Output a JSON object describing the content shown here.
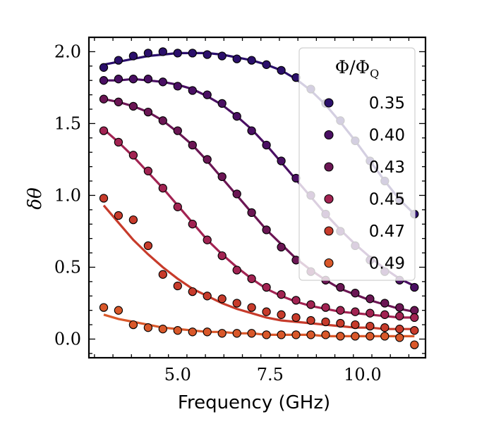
{
  "chart_data": {
    "type": "scatter",
    "xlabel": "Frequency (GHz)",
    "ylabel": "δθ",
    "xlim": [
      2.6,
      11.7
    ],
    "ylim": [
      -0.13,
      2.1
    ],
    "xticks": [
      5.0,
      7.5,
      10.0
    ],
    "xtick_labels": [
      "5.0",
      "7.5",
      "10.0"
    ],
    "yticks": [
      0.0,
      0.5,
      1.0,
      1.5,
      2.0
    ],
    "ytick_labels": [
      "0.0",
      "0.5",
      "1.0",
      "1.5",
      "2.0"
    ],
    "grid": false,
    "legend": {
      "placement": "top-right",
      "title": "Φ/Φ",
      "title_subscript": "Q"
    },
    "x": [
      3.0,
      3.4,
      3.8,
      4.2,
      4.6,
      5.0,
      5.4,
      5.8,
      6.2,
      6.6,
      7.0,
      7.4,
      7.8,
      8.2,
      8.6,
      9.0,
      9.4,
      9.8,
      10.2,
      10.6,
      11.0,
      11.4
    ],
    "series": [
      {
        "name": "0.35",
        "color": "#2b0f6b",
        "values": [
          1.89,
          1.94,
          1.97,
          1.99,
          2.0,
          1.99,
          1.99,
          1.98,
          1.97,
          1.95,
          1.94,
          1.91,
          1.87,
          1.82,
          1.74,
          1.64,
          1.52,
          1.38,
          1.24,
          1.1,
          0.97,
          0.87
        ],
        "fit": [
          1.91,
          1.93,
          1.95,
          1.97,
          1.98,
          1.99,
          1.99,
          1.99,
          1.98,
          1.96,
          1.94,
          1.91,
          1.87,
          1.81,
          1.73,
          1.63,
          1.51,
          1.38,
          1.24,
          1.1,
          0.97,
          0.87
        ]
      },
      {
        "name": "0.40",
        "color": "#4a0f63",
        "values": [
          1.8,
          1.81,
          1.81,
          1.81,
          1.79,
          1.76,
          1.73,
          1.7,
          1.64,
          1.55,
          1.45,
          1.35,
          1.24,
          1.12,
          1.0,
          0.87,
          0.75,
          0.65,
          0.55,
          0.47,
          0.41,
          0.36
        ],
        "fit": [
          1.8,
          1.8,
          1.81,
          1.8,
          1.79,
          1.77,
          1.74,
          1.69,
          1.63,
          1.55,
          1.46,
          1.35,
          1.23,
          1.11,
          0.99,
          0.87,
          0.76,
          0.66,
          0.57,
          0.49,
          0.42,
          0.37
        ]
      },
      {
        "name": "0.43",
        "color": "#6b1654",
        "values": [
          1.67,
          1.65,
          1.62,
          1.58,
          1.52,
          1.45,
          1.35,
          1.25,
          1.13,
          1.01,
          0.88,
          0.76,
          0.64,
          0.55,
          0.47,
          0.41,
          0.36,
          0.32,
          0.28,
          0.25,
          0.22,
          0.2
        ],
        "fit": [
          1.67,
          1.65,
          1.62,
          1.58,
          1.52,
          1.44,
          1.35,
          1.24,
          1.12,
          1.0,
          0.88,
          0.76,
          0.66,
          0.56,
          0.48,
          0.41,
          0.35,
          0.31,
          0.27,
          0.24,
          0.21,
          0.19
        ]
      },
      {
        "name": "0.45",
        "color": "#a22352",
        "values": [
          1.45,
          1.37,
          1.28,
          1.17,
          1.05,
          0.92,
          0.8,
          0.69,
          0.58,
          0.48,
          0.42,
          0.36,
          0.31,
          0.27,
          0.24,
          0.22,
          0.2,
          0.19,
          0.18,
          0.17,
          0.16,
          0.15
        ],
        "fit": [
          1.46,
          1.37,
          1.27,
          1.16,
          1.05,
          0.93,
          0.81,
          0.69,
          0.59,
          0.5,
          0.42,
          0.35,
          0.3,
          0.26,
          0.23,
          0.21,
          0.19,
          0.18,
          0.17,
          0.16,
          0.15,
          0.15
        ]
      },
      {
        "name": "0.47",
        "color": "#c73b2b",
        "values": [
          0.98,
          0.86,
          0.83,
          0.65,
          0.45,
          0.37,
          0.33,
          0.3,
          0.28,
          0.25,
          0.22,
          0.19,
          0.17,
          0.15,
          0.13,
          0.12,
          0.11,
          0.1,
          0.09,
          0.08,
          0.07,
          0.06
        ],
        "fit": [
          0.93,
          0.81,
          0.69,
          0.59,
          0.5,
          0.42,
          0.35,
          0.3,
          0.25,
          0.21,
          0.18,
          0.15,
          0.13,
          0.12,
          0.11,
          0.1,
          0.09,
          0.08,
          0.08,
          0.07,
          0.07,
          0.07
        ]
      },
      {
        "name": "0.49",
        "color": "#d9582a",
        "values": [
          0.22,
          0.2,
          0.1,
          0.08,
          0.07,
          0.06,
          0.05,
          0.05,
          0.04,
          0.04,
          0.04,
          0.03,
          0.03,
          0.03,
          0.03,
          0.03,
          0.02,
          0.02,
          0.02,
          0.02,
          0.01,
          -0.04
        ],
        "fit": [
          0.17,
          0.14,
          0.12,
          0.1,
          0.08,
          0.07,
          0.06,
          0.05,
          0.05,
          0.04,
          0.04,
          0.03,
          0.03,
          0.03,
          0.03,
          0.02,
          0.02,
          0.02,
          0.02,
          0.02,
          0.02,
          0.02
        ]
      }
    ]
  }
}
